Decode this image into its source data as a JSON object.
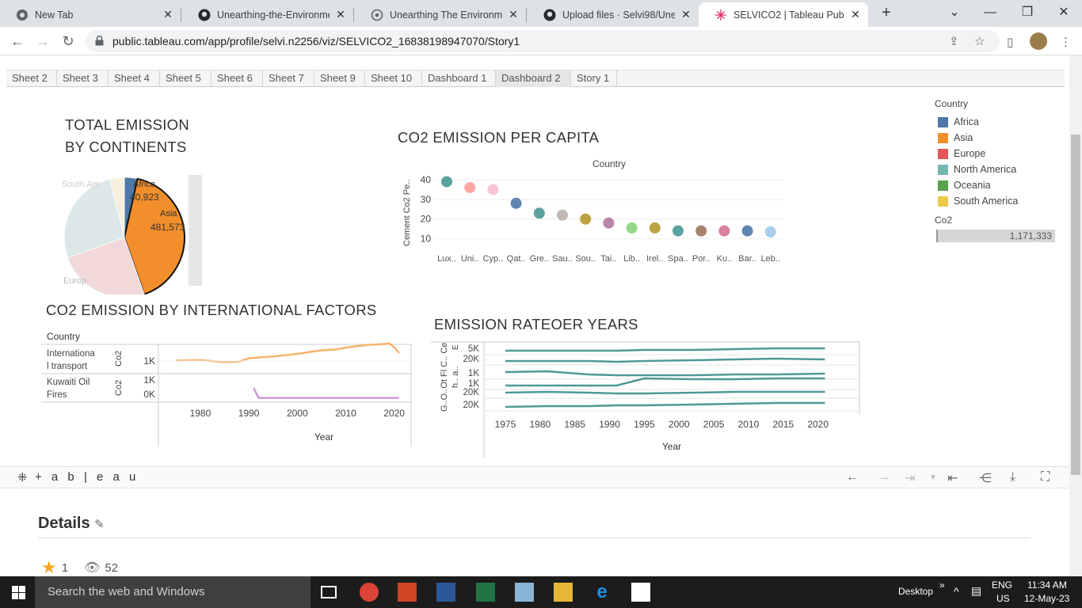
{
  "browser": {
    "tabs": [
      {
        "title": "New Tab",
        "icon": "chrome-icon"
      },
      {
        "title": "Unearthing-the-Environment",
        "icon": "github-icon"
      },
      {
        "title": "Unearthing The Environment",
        "icon": "globe-icon"
      },
      {
        "title": "Upload files · Selvi98/Unearth",
        "icon": "github-icon"
      },
      {
        "title": "SELVICO2 | Tableau Public",
        "icon": "tableau-icon",
        "active": true
      }
    ],
    "url": "public.tableau.com/app/profile/selvi.n2256/viz/SELVICO2_16838198947070/Story1"
  },
  "sheet_tabs": [
    "Sheet 2",
    "Sheet 3",
    "Sheet 4",
    "Sheet 5",
    "Sheet 6",
    "Sheet 7",
    "Sheet 9",
    "Sheet 10",
    "Dashboard 1",
    "Dashboard 2",
    "Story 1"
  ],
  "selected_sheet": "Dashboard 2",
  "pie": {
    "title_line1": "TOTAL EMISSION",
    "title_line2": "BY CONTINENTS",
    "labels": {
      "africa_name": "Africa",
      "africa_value": "40,923",
      "asia_name": "Asia",
      "asia_value": "481,573",
      "south_america": "South Am",
      "europe": "Europ"
    }
  },
  "scatter": {
    "title": "CO2 EMISSION PER CAPITA",
    "header": "Country",
    "ylabel": "Cement Co2 Pe.."
  },
  "factors": {
    "title": "CO2 EMISSION BY INTERNATIONAL FACTORS",
    "col_header": "Country",
    "rows": [
      {
        "line1": "Internationa",
        "line2": "l transport",
        "measure": "Co2"
      },
      {
        "line1": "Kuwaiti Oil",
        "line2": "Fires",
        "measure": "Co2"
      }
    ],
    "xlabel": "Year"
  },
  "rate": {
    "title": "EMISSION RATEOER YEARS",
    "row_labels": "G..O..Ot Fl C.. Ce",
    "row_labels2": "h.. a..",
    "top_letter": "E",
    "xlabel": "Year"
  },
  "legend": {
    "title": "Country",
    "items": [
      {
        "name": "Africa",
        "color": "#4e79a7"
      },
      {
        "name": "Asia",
        "color": "#f28e2b"
      },
      {
        "name": "Europe",
        "color": "#e15759"
      },
      {
        "name": "North America",
        "color": "#76b7b2"
      },
      {
        "name": "Oceania",
        "color": "#59a14f"
      },
      {
        "name": "South America",
        "color": "#edc948"
      }
    ],
    "co2_title": "Co2",
    "co2_value": "1,171,333"
  },
  "toolbar": {
    "logo": "+ a b | e a u"
  },
  "details": {
    "title": "Details",
    "stars": "1",
    "views": "52"
  },
  "taskbar": {
    "search": "Search the web and Windows",
    "desktop": "Desktop",
    "lang1": "ENG",
    "lang2": "US",
    "time": "11:34 AM",
    "date": "12-May-23"
  },
  "chart_data": [
    {
      "type": "pie",
      "title": "TOTAL EMISSION BY CONTINENTS",
      "slices": [
        {
          "label": "Africa",
          "value": 40923,
          "color": "#4e79a7"
        },
        {
          "label": "Asia",
          "value": 481573,
          "color": "#f28e2b"
        },
        {
          "label": "Europe",
          "value": null,
          "color": "#f1d9da"
        },
        {
          "label": "North America",
          "value": null,
          "color": "#dce8e8"
        },
        {
          "label": "South America",
          "value": null,
          "color": "#f6f0dc"
        }
      ]
    },
    {
      "type": "scatter",
      "title": "CO2 EMISSION PER CAPITA",
      "categories": [
        "Lux..",
        "Uni..",
        "Cyp..",
        "Qat..",
        "Gre..",
        "Sau..",
        "Sou..",
        "Tai..",
        "Lib..",
        "Irel..",
        "Spa..",
        "Por..",
        "Ku..",
        "Bar..",
        "Leb.."
      ],
      "values": [
        39,
        36,
        35,
        28,
        23,
        22,
        20,
        18,
        15.5,
        15.5,
        14,
        14,
        14,
        14,
        13.5
      ],
      "colors": [
        "#499894",
        "#ff9d9a",
        "#fabfd2",
        "#4e79a7",
        "#499894",
        "#bab0ac",
        "#b6992d",
        "#b07aa1",
        "#8cd17d",
        "#b6992d",
        "#499894",
        "#9d7660",
        "#d37295",
        "#4e79a7",
        "#a0cbe8"
      ],
      "yticks": [
        10,
        20,
        30,
        40
      ],
      "ylim": [
        5,
        42
      ]
    },
    {
      "type": "line",
      "title": "CO2 EMISSION BY INTERNATIONAL FACTORS",
      "xlabel": "Year",
      "xticks": [
        1980,
        1990,
        2000,
        2010,
        2020
      ],
      "xlim": [
        1972,
        2023
      ],
      "series": [
        {
          "name": "International transport",
          "color": "#f6b26b",
          "yticks": [
            "1K"
          ],
          "x": [
            1975,
            1980,
            1985,
            1988,
            1990,
            1992,
            1995,
            2000,
            2005,
            2008,
            2010,
            2013,
            2015,
            2018,
            2019,
            2020,
            2021
          ],
          "y": [
            0.75,
            0.76,
            0.72,
            0.73,
            0.8,
            0.82,
            0.84,
            0.9,
            0.98,
            1.0,
            1.04,
            1.08,
            1.1,
            1.12,
            1.13,
            1.05,
            0.92
          ]
        },
        {
          "name": "Kuwaiti Oil Fires",
          "color": "#d39ad6",
          "yticks": [
            "1K",
            "0K"
          ],
          "x": [
            1991,
            1992,
            2000,
            2010,
            2020,
            2021
          ],
          "y": [
            1.0,
            0.1,
            0.1,
            0.1,
            0.1,
            0.1
          ]
        }
      ]
    },
    {
      "type": "line",
      "title": "EMISSION RATEOER YEARS",
      "xlabel": "Year",
      "xticks": [
        1975,
        1980,
        1985,
        1990,
        1995,
        2000,
        2005,
        2010,
        2015,
        2020
      ],
      "xlim": [
        1972,
        2023
      ],
      "row_ticks": [
        "5K",
        "20K",
        "1K",
        "1K",
        "20K",
        "20K"
      ],
      "color": "#4e9a96",
      "rows": 6
    }
  ]
}
